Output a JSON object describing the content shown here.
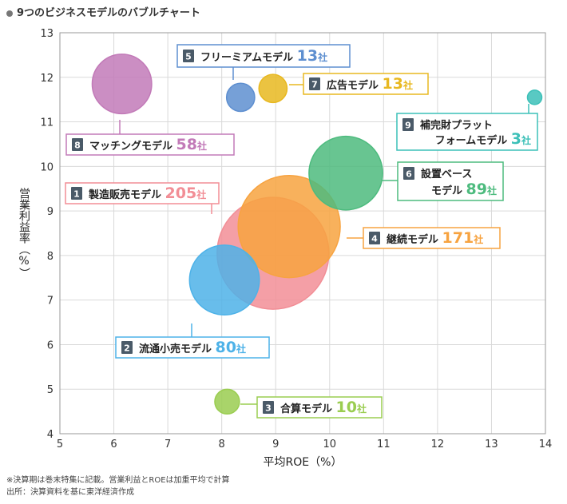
{
  "chart_data": {
    "type": "scatter",
    "title": "9つのビジネスモデルのバブルチャート",
    "xlabel": "平均ROE（%）",
    "ylabel": "営業利益率（%）",
    "xlim": [
      5,
      14
    ],
    "ylim": [
      4,
      13
    ],
    "xticks": [
      "5",
      "6",
      "7",
      "8",
      "9",
      "10",
      "11",
      "12",
      "13",
      "14"
    ],
    "yticks": [
      "4",
      "5",
      "6",
      "7",
      "8",
      "9",
      "10",
      "11",
      "12",
      "13"
    ],
    "grid": true,
    "count_unit": "社",
    "bubbles": [
      {
        "num": "1",
        "name": "製造販売モデル",
        "count": 205,
        "x": 8.95,
        "y": 8.05,
        "color": "#f28e96"
      },
      {
        "num": "2",
        "name": "流通小売モデル",
        "count": 80,
        "x": 8.05,
        "y": 7.45,
        "color": "#4db2e8"
      },
      {
        "num": "3",
        "name": "合算モデル",
        "count": 10,
        "x": 8.1,
        "y": 4.72,
        "color": "#9acd50"
      },
      {
        "num": "4",
        "name": "継続モデル",
        "count": 171,
        "x": 9.25,
        "y": 8.65,
        "color": "#f7a340"
      },
      {
        "num": "5",
        "name": "フリーミアムモデル",
        "count": 13,
        "x": 8.35,
        "y": 11.55,
        "color": "#5e8fd0"
      },
      {
        "num": "6",
        "name": "設置ベースモデル",
        "name_lines": [
          "設置ベース",
          "モデル"
        ],
        "count": 89,
        "x": 10.3,
        "y": 9.85,
        "color": "#4dbb7e"
      },
      {
        "num": "7",
        "name": "広告モデル",
        "count": 13,
        "x": 8.95,
        "y": 11.75,
        "color": "#e8b820"
      },
      {
        "num": "8",
        "name": "マッチングモデル",
        "count": 58,
        "x": 6.15,
        "y": 11.85,
        "color": "#c27ab8"
      },
      {
        "num": "9",
        "name": "補完財プラットフォームモデル",
        "name_lines": [
          "補完財プラット",
          "フォームモデル"
        ],
        "count": 3,
        "x": 13.8,
        "y": 11.55,
        "color": "#3cc0b8"
      }
    ]
  },
  "notes": [
    "※決算期は巻末特集に記載。営業利益とROEは加重平均で計算",
    "出所：決算資料を基に東洋経済作成"
  ]
}
